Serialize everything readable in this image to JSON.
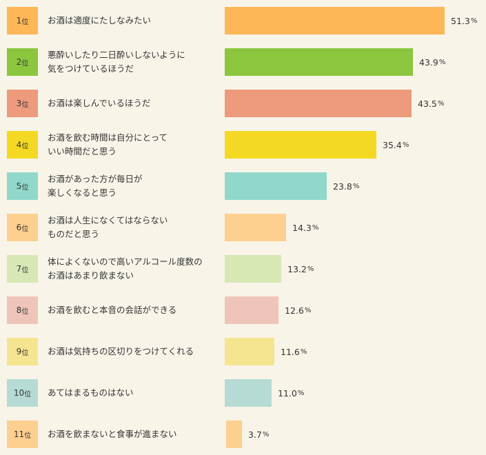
{
  "chart_data": {
    "type": "bar",
    "orientation": "horizontal",
    "rank_suffix": "位",
    "value_suffix": "%",
    "items": [
      {
        "rank": 1,
        "label": "お酒は適度にたしなみたい",
        "value": 51.3,
        "value_text": "51.3",
        "color": "#fdb757",
        "rank_color": "#fdb757"
      },
      {
        "rank": 2,
        "label": "悪酔いしたり二日酔いしないように\n気をつけているほうだ",
        "value": 43.9,
        "value_text": "43.9",
        "color": "#8cc63f",
        "rank_color": "#8cc63f"
      },
      {
        "rank": 3,
        "label": "お酒は楽しんでいるほうだ",
        "value": 43.5,
        "value_text": "43.5",
        "color": "#ed9a7d",
        "rank_color": "#ed9a7d"
      },
      {
        "rank": 4,
        "label": "お酒を飲む時間は自分にとって\nいい時間だと思う",
        "value": 35.4,
        "value_text": "35.4",
        "color": "#f3d923",
        "rank_color": "#f3d923"
      },
      {
        "rank": 5,
        "label": "お酒があった方が毎日が\n楽しくなると思う",
        "value": 23.8,
        "value_text": "23.8",
        "color": "#8fd8ca",
        "rank_color": "#8fd8ca"
      },
      {
        "rank": 6,
        "label": "お酒は人生になくてはならない\nものだと思う",
        "value": 14.3,
        "value_text": "14.3",
        "color": "#fdd08f",
        "rank_color": "#fdd08f"
      },
      {
        "rank": 7,
        "label": "体によくないので高いアルコール度数の\nお酒はあまり飲まない",
        "value": 13.2,
        "value_text": "13.2",
        "color": "#d7e8b5",
        "rank_color": "#d7e8b5"
      },
      {
        "rank": 8,
        "label": "お酒を飲むと本音の会話ができる",
        "value": 12.6,
        "value_text": "12.6",
        "color": "#eec5b8",
        "rank_color": "#eec5b8"
      },
      {
        "rank": 9,
        "label": "お酒は気持ちの区切りをつけてくれる",
        "value": 11.6,
        "value_text": "11.6",
        "color": "#f6e590",
        "rank_color": "#f6e590"
      },
      {
        "rank": 10,
        "label": "あてはまるものはない",
        "value": 11.0,
        "value_text": "11.0",
        "color": "#b6dbd4",
        "rank_color": "#b6dbd4"
      },
      {
        "rank": 11,
        "label": "お酒を飲まないと食事が進まない",
        "value": 3.7,
        "value_text": "3.7",
        "color": "#fdd08f",
        "rank_color": "#fdd08f"
      }
    ]
  }
}
